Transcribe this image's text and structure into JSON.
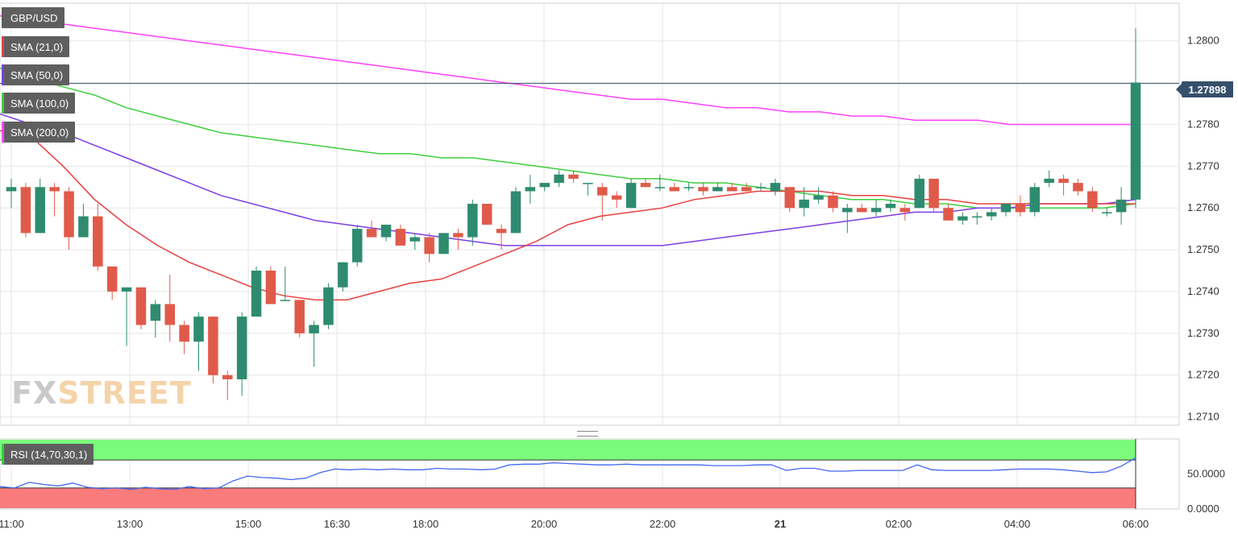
{
  "symbol": "GBP/USD",
  "indicators": [
    {
      "label": "SMA (21,0)",
      "color": "#e84040"
    },
    {
      "label": "SMA (50,0)",
      "color": "#7b3fe4"
    },
    {
      "label": "SMA (100,0)",
      "color": "#3ecf3e"
    },
    {
      "label": "SMA (200,0)",
      "color": "#ff40ff"
    }
  ],
  "rsi_label": "RSI (14,70,30,1)",
  "current_price": "1.27898",
  "logo": {
    "fx": "FX",
    "street": "STREET"
  },
  "colors": {
    "up": "#2e8b6f",
    "down": "#e05a4a",
    "rsi_line": "#4466ee",
    "overbought": "#7bfa7b",
    "oversold": "#fa7b7b"
  },
  "chart_data": {
    "type": "candlestick",
    "y_ticks": [
      "1.2800",
      "1.2790",
      "1.2780",
      "1.2770",
      "1.2760",
      "1.2750",
      "1.2740",
      "1.2730",
      "1.2720",
      "1.2710"
    ],
    "y_tick_values": [
      1.28,
      1.279,
      1.278,
      1.277,
      1.276,
      1.275,
      1.274,
      1.273,
      1.272,
      1.271
    ],
    "visible_y_tick_labels": [
      "1.2800",
      "1.2780",
      "1.2770",
      "1.2760",
      "1.2750",
      "1.2740",
      "1.2730",
      "1.2720",
      "1.2710"
    ],
    "x_ticks": [
      "11:00",
      "13:00",
      "15:00",
      "16:30",
      "18:00",
      "20:00",
      "22:00",
      "21",
      "02:00",
      "04:00",
      "06:00"
    ],
    "ylim": [
      1.2708,
      1.2809
    ],
    "last_price": 1.27898,
    "candles": [
      [
        1.2764,
        1.2767,
        1.276,
        1.2765
      ],
      [
        1.2765,
        1.2766,
        1.2753,
        1.2754
      ],
      [
        1.2754,
        1.2767,
        1.2754,
        1.2765
      ],
      [
        1.2765,
        1.2766,
        1.2758,
        1.2764
      ],
      [
        1.2764,
        1.2765,
        1.275,
        1.2753
      ],
      [
        1.2753,
        1.2761,
        1.2753,
        1.2758
      ],
      [
        1.2758,
        1.2761,
        1.2745,
        1.2746
      ],
      [
        1.2746,
        1.2746,
        1.2738,
        1.274
      ],
      [
        1.274,
        1.2741,
        1.2727,
        1.2741
      ],
      [
        1.2741,
        1.2741,
        1.2731,
        1.2732
      ],
      [
        1.2733,
        1.2738,
        1.2729,
        1.2737
      ],
      [
        1.2737,
        1.2744,
        1.2728,
        1.2732
      ],
      [
        1.2732,
        1.2733,
        1.2725,
        1.2728
      ],
      [
        1.2728,
        1.2735,
        1.2721,
        1.2734
      ],
      [
        1.2734,
        1.2734,
        1.2718,
        1.272
      ],
      [
        1.272,
        1.2721,
        1.2714,
        1.2719
      ],
      [
        1.2719,
        1.2735,
        1.2715,
        1.2734
      ],
      [
        1.2734,
        1.2746,
        1.2734,
        1.2745
      ],
      [
        1.2745,
        1.2746,
        1.2738,
        1.2737
      ],
      [
        1.2738,
        1.2746,
        1.2738,
        1.2738
      ],
      [
        1.2738,
        1.2738,
        1.2729,
        1.273
      ],
      [
        1.273,
        1.2733,
        1.2722,
        1.2732
      ],
      [
        1.2732,
        1.2742,
        1.2731,
        1.2741
      ],
      [
        1.2741,
        1.2747,
        1.274,
        1.2747
      ],
      [
        1.2747,
        1.2756,
        1.2746,
        1.2755
      ],
      [
        1.2755,
        1.2757,
        1.2753,
        1.2753
      ],
      [
        1.2753,
        1.2756,
        1.2752,
        1.2756
      ],
      [
        1.2755,
        1.2756,
        1.2751,
        1.2751
      ],
      [
        1.2752,
        1.2754,
        1.275,
        1.2753
      ],
      [
        1.2753,
        1.2754,
        1.2747,
        1.2749
      ],
      [
        1.2749,
        1.2754,
        1.2749,
        1.2754
      ],
      [
        1.2754,
        1.2755,
        1.275,
        1.2753
      ],
      [
        1.2753,
        1.2762,
        1.2751,
        1.2761
      ],
      [
        1.2761,
        1.2761,
        1.2756,
        1.2756
      ],
      [
        1.2755,
        1.2756,
        1.275,
        1.2754
      ],
      [
        1.2754,
        1.2765,
        1.2754,
        1.2764
      ],
      [
        1.2764,
        1.2768,
        1.2761,
        1.2765
      ],
      [
        1.2765,
        1.2766,
        1.2764,
        1.2766
      ],
      [
        1.2766,
        1.2769,
        1.2765,
        1.2768
      ],
      [
        1.2768,
        1.2769,
        1.2766,
        1.2767
      ],
      [
        1.2766,
        1.2766,
        1.2763,
        1.2766
      ],
      [
        1.2765,
        1.2766,
        1.2757,
        1.2763
      ],
      [
        1.2763,
        1.2764,
        1.276,
        1.2762
      ],
      [
        1.276,
        1.2767,
        1.276,
        1.2766
      ],
      [
        1.2766,
        1.2767,
        1.2765,
        1.2765
      ],
      [
        1.2765,
        1.2768,
        1.2764,
        1.2765
      ],
      [
        1.2765,
        1.2766,
        1.2764,
        1.2764
      ],
      [
        1.2765,
        1.2766,
        1.2764,
        1.2765
      ],
      [
        1.2765,
        1.2766,
        1.2763,
        1.2764
      ],
      [
        1.2764,
        1.2766,
        1.2764,
        1.2765
      ],
      [
        1.2765,
        1.2766,
        1.2764,
        1.2764
      ],
      [
        1.2765,
        1.2766,
        1.2764,
        1.2764
      ],
      [
        1.2765,
        1.2766,
        1.2764,
        1.2765
      ],
      [
        1.2764,
        1.2767,
        1.2763,
        1.2766
      ],
      [
        1.2765,
        1.2765,
        1.2759,
        1.276
      ],
      [
        1.276,
        1.2765,
        1.2758,
        1.2762
      ],
      [
        1.2762,
        1.2765,
        1.2761,
        1.2763
      ],
      [
        1.2763,
        1.2764,
        1.2759,
        1.276
      ],
      [
        1.2759,
        1.2761,
        1.2754,
        1.276
      ],
      [
        1.276,
        1.2761,
        1.2759,
        1.2759
      ],
      [
        1.2759,
        1.2762,
        1.2758,
        1.276
      ],
      [
        1.276,
        1.2762,
        1.2759,
        1.2761
      ],
      [
        1.276,
        1.2761,
        1.2757,
        1.2759
      ],
      [
        1.276,
        1.2768,
        1.276,
        1.2767
      ],
      [
        1.2767,
        1.2767,
        1.2759,
        1.276
      ],
      [
        1.276,
        1.2761,
        1.2758,
        1.2757
      ],
      [
        1.2757,
        1.2759,
        1.2756,
        1.2758
      ],
      [
        1.2758,
        1.2759,
        1.2756,
        1.2758
      ],
      [
        1.2758,
        1.276,
        1.2757,
        1.2759
      ],
      [
        1.2759,
        1.2761,
        1.2758,
        1.2761
      ],
      [
        1.2761,
        1.2763,
        1.2758,
        1.2759
      ],
      [
        1.2759,
        1.2766,
        1.2758,
        1.2765
      ],
      [
        1.2766,
        1.2769,
        1.2765,
        1.2767
      ],
      [
        1.2767,
        1.2768,
        1.2763,
        1.2766
      ],
      [
        1.2766,
        1.2767,
        1.2763,
        1.2764
      ],
      [
        1.2764,
        1.2765,
        1.2759,
        1.276
      ],
      [
        1.2759,
        1.276,
        1.2758,
        1.2759
      ],
      [
        1.2759,
        1.2765,
        1.2756,
        1.2762
      ],
      [
        1.2762,
        1.2803,
        1.276,
        1.279
      ]
    ],
    "sma21": [
      1.27785,
      1.2777,
      1.277,
      1.2762,
      1.2756,
      1.2751,
      1.2747,
      1.2744,
      1.2741,
      1.2739,
      1.2738,
      1.2738,
      1.274,
      1.2742,
      1.2743,
      1.2746,
      1.2749,
      1.2752,
      1.2756,
      1.2758,
      1.2759,
      1.276,
      1.2762,
      1.2763,
      1.2764,
      1.2764,
      1.2764,
      1.2763,
      1.2763,
      1.2762,
      1.2762,
      1.2761,
      1.2761,
      1.2761,
      1.2761,
      1.2761,
      1.2761
    ],
    "sma50": [
      1.27825,
      1.278,
      1.2778,
      1.2775,
      1.2772,
      1.2769,
      1.2766,
      1.2763,
      1.2761,
      1.2759,
      1.2757,
      1.2756,
      1.2755,
      1.2754,
      1.2753,
      1.2752,
      1.2751,
      1.2751,
      1.2751,
      1.2751,
      1.2751,
      1.2751,
      1.2752,
      1.2753,
      1.2754,
      1.2755,
      1.2756,
      1.2757,
      1.2758,
      1.2759,
      1.2759,
      1.276,
      1.276,
      1.2761,
      1.2761,
      1.2761,
      1.2762
    ],
    "sma100": [
      1.27935,
      1.2791,
      1.2789,
      1.2787,
      1.2784,
      1.2782,
      1.278,
      1.2778,
      1.2777,
      1.2776,
      1.2775,
      1.2774,
      1.2773,
      1.2773,
      1.2772,
      1.2772,
      1.2771,
      1.277,
      1.2769,
      1.2768,
      1.2767,
      1.2767,
      1.2766,
      1.2766,
      1.2765,
      1.2764,
      1.2763,
      1.2762,
      1.2762,
      1.2761,
      1.2761,
      1.276,
      1.276,
      1.276,
      1.276,
      1.276,
      1.2761
    ],
    "sma200": [
      1.2806,
      1.2805,
      1.2804,
      1.2803,
      1.2802,
      1.2801,
      1.28,
      1.2799,
      1.2798,
      1.2797,
      1.2796,
      1.2795,
      1.2794,
      1.2793,
      1.2792,
      1.2791,
      1.279,
      1.2789,
      1.2788,
      1.2787,
      1.2786,
      1.2786,
      1.2785,
      1.2784,
      1.2784,
      1.2783,
      1.2783,
      1.2782,
      1.2782,
      1.2781,
      1.2781,
      1.2781,
      1.278,
      1.278,
      1.278,
      1.278,
      1.278
    ],
    "rsi": {
      "y_ticks": [
        "50.0000",
        "0.0000"
      ],
      "y_tick_values": [
        50,
        0
      ],
      "ylim": [
        0,
        100
      ],
      "overbought": 70,
      "oversold": 30,
      "values": [
        32,
        30,
        38,
        35,
        33,
        37,
        31,
        29,
        30,
        28,
        31,
        29,
        28,
        32,
        29,
        30,
        40,
        47,
        45,
        44,
        42,
        44,
        52,
        57,
        56,
        57,
        56,
        57,
        56,
        56,
        58,
        57,
        57,
        56,
        57,
        63,
        64,
        64,
        66,
        65,
        64,
        63,
        63,
        64,
        63,
        63,
        63,
        63,
        63,
        62,
        62,
        62,
        63,
        63,
        55,
        58,
        58,
        54,
        54,
        55,
        55,
        55,
        55,
        63,
        56,
        55,
        55,
        55,
        55,
        56,
        57,
        57,
        57,
        56,
        54,
        52,
        53,
        61,
        73
      ]
    }
  }
}
